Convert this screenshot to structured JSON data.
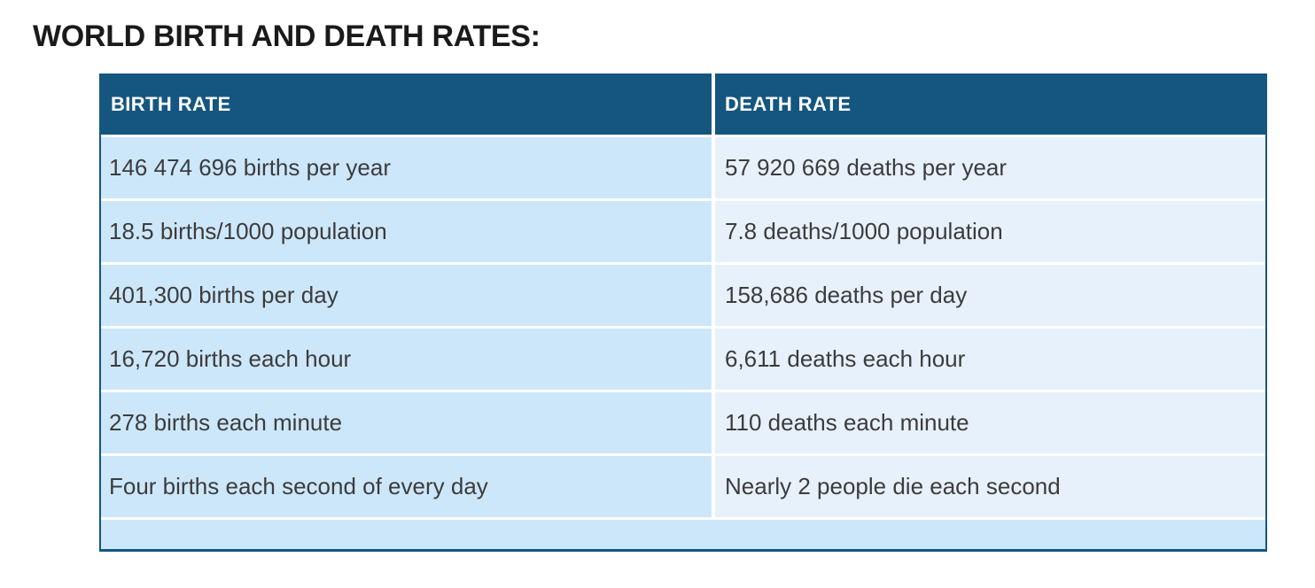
{
  "page_title": "WORLD BIRTH AND DEATH RATES:",
  "table": {
    "columns": [
      {
        "header": "BIRTH RATE"
      },
      {
        "header": "DEATH RATE"
      }
    ],
    "rows": [
      [
        "146 474 696 births per year",
        "57 920 669 deaths per year"
      ],
      [
        "18.5 births/1000 population",
        "7.8 deaths/1000 population"
      ],
      [
        "401,300 births per day",
        "158,686 deaths per day"
      ],
      [
        "16,720 births each hour",
        "6,611 deaths each hour"
      ],
      [
        "278 births each minute",
        "110 deaths each minute"
      ],
      [
        "Four births each second of every day",
        "Nearly 2 people die each second"
      ]
    ]
  },
  "chart_data": {
    "type": "table",
    "title": "WORLD BIRTH AND DEATH RATES:",
    "columns": [
      "BIRTH RATE",
      "DEATH RATE"
    ],
    "rows": [
      [
        "146 474 696 births per year",
        "57 920 669 deaths per year"
      ],
      [
        "18.5 births/1000 population",
        "7.8 deaths/1000 population"
      ],
      [
        "401,300 births per day",
        "158,686 deaths per day"
      ],
      [
        "16,720 births each hour",
        "6,611 deaths each hour"
      ],
      [
        "278 births each minute",
        "110 deaths each minute"
      ],
      [
        "Four births each second of every day",
        "Nearly 2 people die each second"
      ]
    ]
  },
  "colors": {
    "page_bg": "#ffffff",
    "header_bg": "#15567f",
    "header_text": "#ffffff",
    "left_cell_bg": "#cde7fa",
    "right_cell_bg": "#e7f1fb",
    "footer_bg": "#cde7fa",
    "separator_color": "#ffffff",
    "border_color": "#15567f",
    "title_color": "#1a1a1a",
    "cell_text": "#3c3c3c"
  }
}
